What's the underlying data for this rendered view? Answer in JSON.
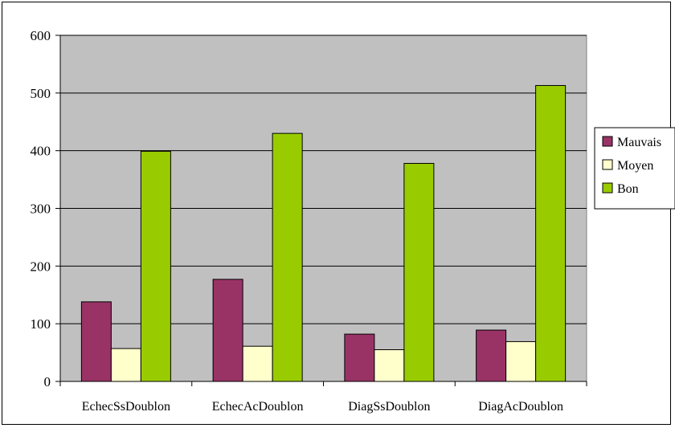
{
  "chart_data": {
    "type": "bar",
    "categories": [
      "EchecSsDoublon",
      "EchecAcDoublon",
      "DiagSsDoublon",
      "DiagAcDoublon"
    ],
    "series": [
      {
        "name": "Mauvais",
        "color": "#993366",
        "values": [
          138,
          177,
          82,
          89
        ]
      },
      {
        "name": "Moyen",
        "color": "#FFFFCC",
        "values": [
          57,
          61,
          55,
          69
        ]
      },
      {
        "name": "Bon",
        "color": "#99CC00",
        "values": [
          399,
          430,
          378,
          513
        ]
      }
    ],
    "ylim": [
      0,
      600
    ],
    "yticks": [
      0,
      100,
      200,
      300,
      400,
      500,
      600
    ],
    "grid": true,
    "plot_background": "#C0C0C0",
    "legend_position": "right",
    "title": "",
    "xlabel": "",
    "ylabel": ""
  }
}
